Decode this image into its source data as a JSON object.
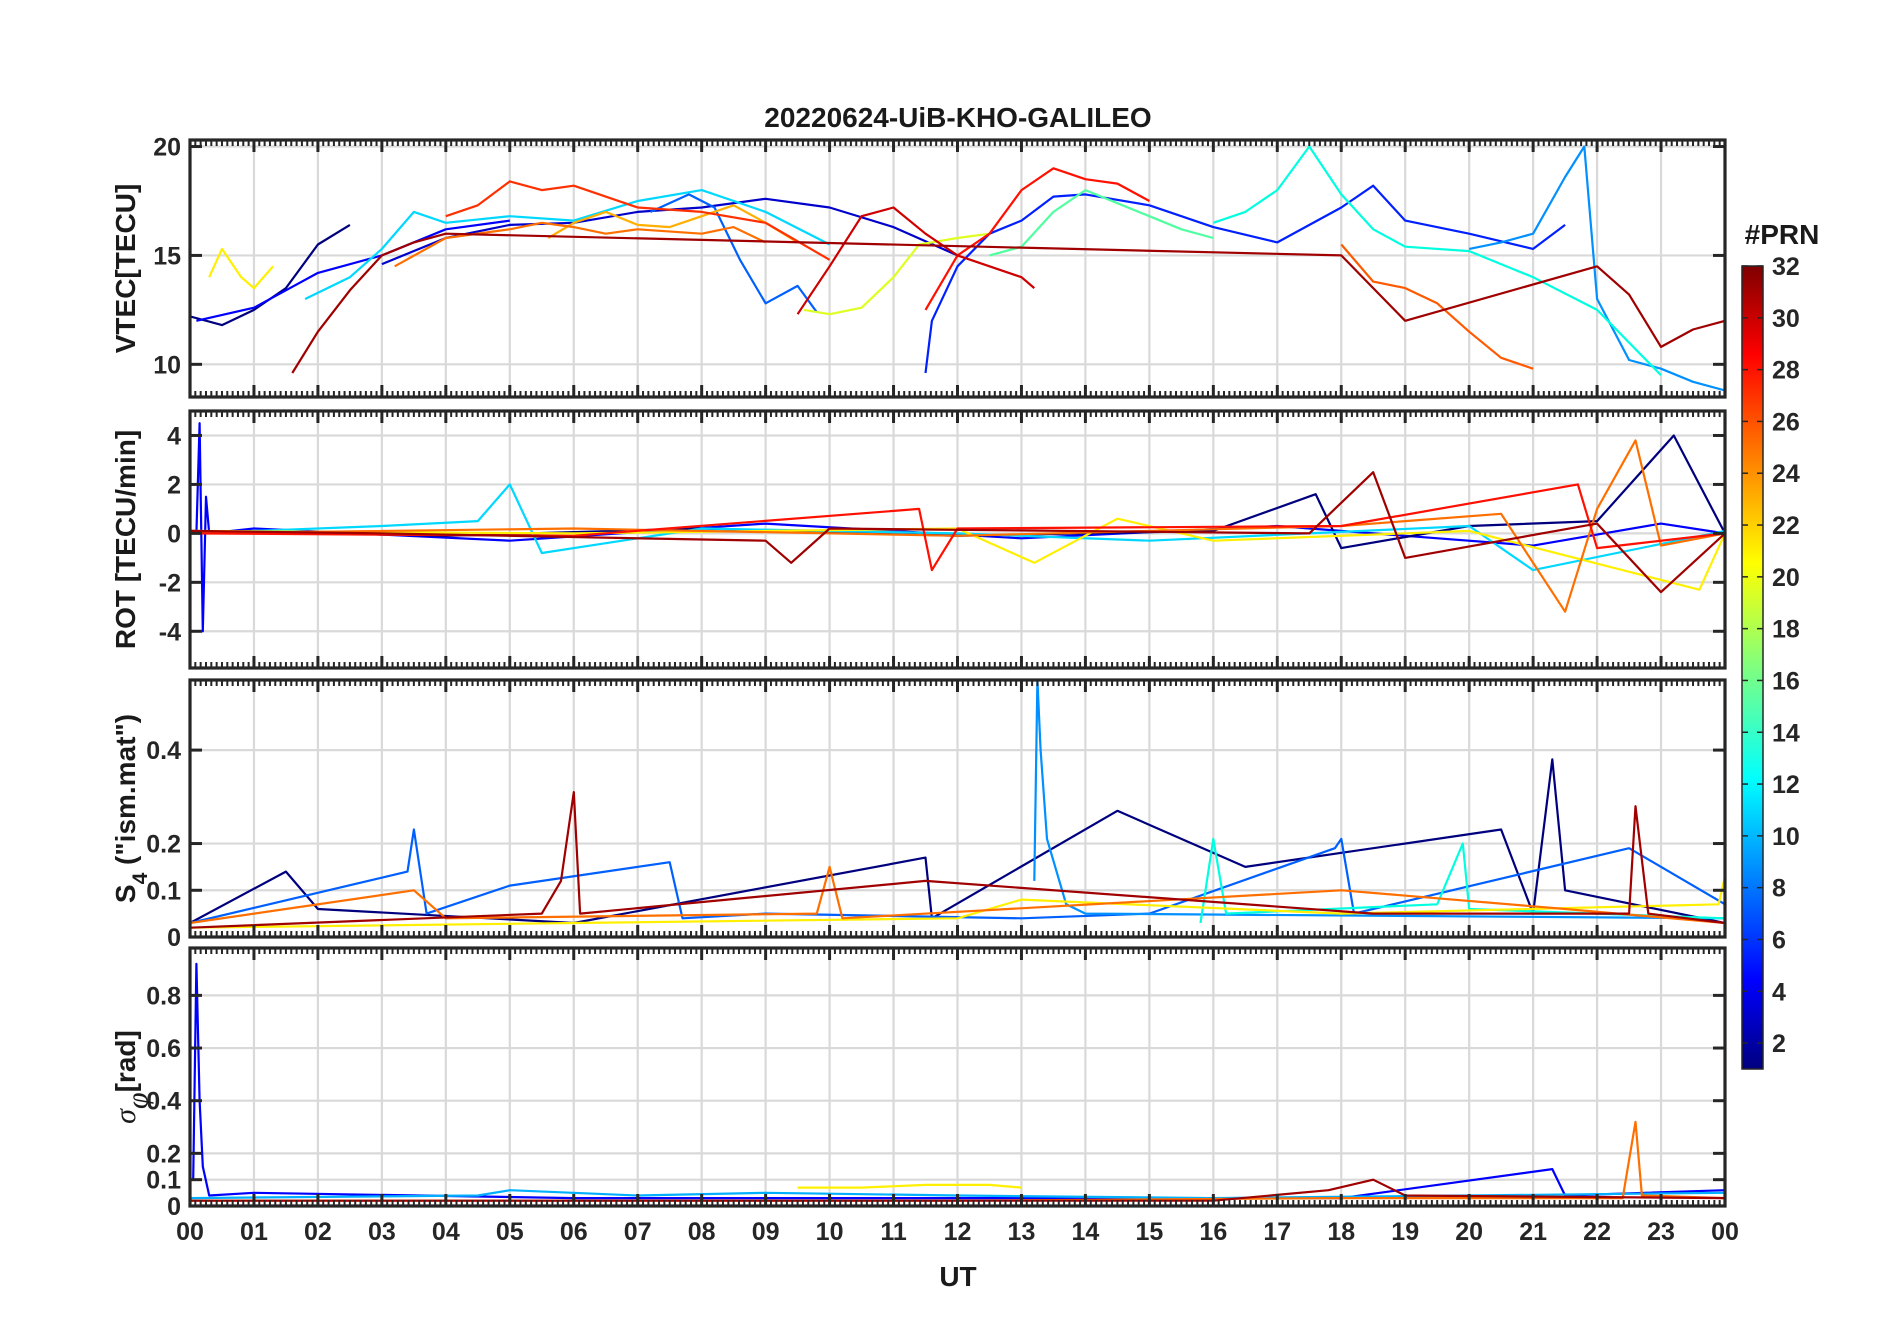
{
  "title": "20220624-UiB-KHO-GALILEO",
  "colorbar": {
    "title": "#PRN",
    "ticks": [
      "2",
      "4",
      "6",
      "8",
      "10",
      "12",
      "14",
      "16",
      "18",
      "20",
      "22",
      "24",
      "26",
      "28",
      "30",
      "32"
    ],
    "range": [
      1,
      32
    ],
    "colormap": "jet"
  },
  "chart_data": [
    {
      "type": "line",
      "panel": "VTEC",
      "title": "20220624-UiB-KHO-GALILEO",
      "xlabel": "",
      "ylabel": "VTEC[TECU]",
      "xlim": [
        0,
        24
      ],
      "ylim": [
        8.5,
        20.3
      ],
      "yticks": [
        "10",
        "15",
        "20"
      ],
      "grid": true,
      "series": [
        {
          "prn": 2,
          "color": "#00007f",
          "x": [
            0.0,
            0.5,
            1.0,
            1.5,
            2.0,
            2.5
          ],
          "y": [
            12.2,
            11.8,
            12.5,
            13.5,
            15.5,
            16.4
          ]
        },
        {
          "prn": 4,
          "color": "#0000ff",
          "x": [
            0.1,
            1.0,
            1.5,
            2.0,
            3.0,
            4.0,
            5.0
          ],
          "y": [
            12.0,
            12.6,
            13.4,
            14.2,
            15.0,
            16.2,
            16.6
          ]
        },
        {
          "prn": 3,
          "color": "#0000cc",
          "x": [
            3.0,
            4.0,
            5.0,
            6.0,
            7.0,
            8.0,
            9.0,
            10.0,
            11.0,
            12.0
          ],
          "y": [
            14.6,
            15.8,
            16.4,
            16.5,
            17.0,
            17.2,
            17.6,
            17.2,
            16.3,
            15.0
          ]
        },
        {
          "prn": 5,
          "color": "#0020ff",
          "x": [
            11.5,
            11.6,
            12.0,
            12.5,
            13.0,
            13.5,
            14.0,
            15.0,
            16.0,
            17.0,
            18.0,
            18.5,
            19.0,
            20.0,
            21.0,
            21.5
          ],
          "y": [
            9.6,
            12.0,
            14.5,
            16.0,
            16.6,
            17.7,
            17.8,
            17.3,
            16.3,
            15.6,
            17.2,
            18.2,
            16.6,
            16.0,
            15.3,
            16.4
          ]
        },
        {
          "prn": 8,
          "color": "#0060ff",
          "x": [
            7.2,
            7.8,
            8.2,
            8.6,
            9.0,
            9.5,
            9.8
          ],
          "y": [
            17.0,
            17.8,
            17.2,
            14.8,
            12.8,
            13.6,
            12.4
          ]
        },
        {
          "prn": 9,
          "color": "#0090ff",
          "x": [
            20.0,
            20.5,
            21.0,
            21.5,
            21.8,
            22.0,
            22.5,
            23.0,
            23.5,
            24.0
          ],
          "y": [
            15.3,
            15.6,
            16.0,
            18.6,
            20.0,
            13.0,
            10.2,
            9.8,
            9.2,
            8.8
          ]
        },
        {
          "prn": 12,
          "color": "#00d8ff",
          "x": [
            1.8,
            2.5,
            3.0,
            3.5,
            4.0,
            5.0,
            6.0,
            7.0,
            8.0,
            9.0,
            10.0
          ],
          "y": [
            13.0,
            14.0,
            15.3,
            17.0,
            16.5,
            16.8,
            16.6,
            17.5,
            18.0,
            17.0,
            15.5
          ]
        },
        {
          "prn": 14,
          "color": "#00ffdf",
          "x": [
            16.0,
            16.5,
            17.0,
            17.5,
            18.0,
            18.5,
            19.0,
            20.0,
            21.0,
            22.0,
            23.0
          ],
          "y": [
            16.5,
            17.0,
            18.0,
            20.0,
            17.8,
            16.2,
            15.4,
            15.2,
            14.0,
            12.5,
            9.5
          ]
        },
        {
          "prn": 16,
          "color": "#50ff9f",
          "x": [
            12.5,
            13.0,
            13.5,
            14.0,
            14.5,
            15.0,
            15.5,
            16.0
          ],
          "y": [
            15.0,
            15.4,
            17.0,
            18.0,
            17.4,
            16.8,
            16.2,
            15.8
          ]
        },
        {
          "prn": 19,
          "color": "#dfff20",
          "x": [
            9.6,
            10.0,
            10.5,
            11.0,
            11.4,
            12.0,
            12.5
          ],
          "y": [
            12.5,
            12.3,
            12.6,
            14.0,
            15.5,
            15.8,
            16.0
          ]
        },
        {
          "prn": 20,
          "color": "#ffef00",
          "x": [
            0.3,
            0.5,
            0.8,
            1.0,
            1.3
          ],
          "y": [
            14.0,
            15.3,
            14.0,
            13.5,
            14.5
          ]
        },
        {
          "prn": 22,
          "color": "#ffaf00",
          "x": [
            5.6,
            6.0,
            6.5,
            7.0,
            7.5,
            8.0,
            8.5,
            9.0,
            9.5
          ],
          "y": [
            15.8,
            16.5,
            17.0,
            16.4,
            16.3,
            16.8,
            17.3,
            16.5,
            15.6
          ]
        },
        {
          "prn": 24,
          "color": "#ff6f00",
          "x": [
            3.2,
            4.0,
            5.0,
            5.5,
            6.0,
            6.5,
            7.0,
            8.0,
            8.5,
            9.0
          ],
          "y": [
            14.5,
            15.8,
            16.2,
            16.5,
            16.3,
            16.0,
            16.2,
            16.0,
            16.3,
            15.6
          ]
        },
        {
          "prn": 25,
          "color": "#ff5a00",
          "x": [
            18.0,
            18.5,
            19.0,
            19.5,
            20.0,
            20.5,
            21.0
          ],
          "y": [
            15.5,
            13.8,
            13.5,
            12.8,
            11.5,
            10.3,
            9.8
          ]
        },
        {
          "prn": 27,
          "color": "#ff3000",
          "x": [
            4.0,
            4.5,
            5.0,
            5.5,
            6.0,
            7.0,
            8.0,
            9.0,
            10.0
          ],
          "y": [
            16.8,
            17.3,
            18.4,
            18.0,
            18.2,
            17.2,
            17.0,
            16.5,
            14.8
          ]
        },
        {
          "prn": 28,
          "color": "#ff1000",
          "x": [
            11.5,
            12.0,
            12.5,
            13.0,
            13.5,
            14.0,
            14.5,
            15.0
          ],
          "y": [
            12.5,
            15.0,
            16.0,
            18.0,
            19.0,
            18.5,
            18.3,
            17.5
          ]
        },
        {
          "prn": 30,
          "color": "#cf0000",
          "x": [
            9.5,
            10.0,
            10.5,
            11.0,
            11.5,
            12.0,
            12.5,
            13.0,
            13.2
          ],
          "y": [
            12.3,
            14.5,
            16.8,
            17.2,
            16.0,
            15.0,
            14.5,
            14.0,
            13.5
          ]
        },
        {
          "prn": 31,
          "color": "#a00000",
          "x": [
            1.6,
            2.0,
            2.5,
            3.0,
            3.5,
            4.0,
            18.0,
            18.5,
            19.0,
            22.0,
            22.5,
            23.0,
            23.5,
            24.0
          ],
          "y": [
            9.6,
            11.5,
            13.4,
            15.0,
            15.6,
            16.0,
            15.0,
            13.5,
            12.0,
            14.5,
            13.2,
            10.8,
            11.6,
            12.0
          ]
        }
      ]
    },
    {
      "type": "line",
      "panel": "ROT",
      "xlabel": "",
      "ylabel": "ROT [TECU/min]",
      "xlim": [
        0,
        24
      ],
      "ylim": [
        -5.5,
        5
      ],
      "yticks": [
        "-4",
        "-2",
        "0",
        "2",
        "4"
      ],
      "grid": true,
      "series": [
        {
          "prn": 4,
          "color": "#0000ff",
          "x": [
            0.1,
            0.15,
            0.2,
            0.25,
            0.3,
            1.0,
            5.0,
            9.0,
            13.0,
            17.0,
            21.0,
            23.0,
            24.0
          ],
          "y": [
            0.0,
            4.5,
            -4.0,
            1.5,
            0.0,
            0.2,
            -0.3,
            0.4,
            -0.2,
            0.3,
            -0.5,
            0.4,
            0.0
          ]
        },
        {
          "prn": 2,
          "color": "#00007f",
          "x": [
            0,
            4,
            8,
            12,
            16,
            17.6,
            18,
            20,
            22,
            23.2,
            24
          ],
          "y": [
            0.1,
            -0.1,
            0.2,
            -0.1,
            0.1,
            1.6,
            -0.6,
            0.3,
            0.5,
            4.0,
            0.0
          ]
        },
        {
          "prn": 12,
          "color": "#00d8ff",
          "x": [
            0,
            3,
            4.5,
            5.0,
            5.5,
            8,
            12,
            15,
            20,
            21,
            24
          ],
          "y": [
            0.0,
            0.3,
            0.5,
            2.0,
            -0.8,
            0.2,
            0.0,
            -0.3,
            0.3,
            -1.5,
            0.1
          ]
        },
        {
          "prn": 20,
          "color": "#ffef00",
          "x": [
            0,
            6,
            12,
            13.2,
            14.5,
            16,
            20,
            23.6,
            24
          ],
          "y": [
            0.1,
            0.0,
            0.2,
            -1.2,
            0.6,
            -0.3,
            0.1,
            -2.3,
            0.0
          ]
        },
        {
          "prn": 24,
          "color": "#ff6f00",
          "x": [
            0,
            6,
            12,
            18,
            20.5,
            21.5,
            22,
            22.6,
            23,
            24
          ],
          "y": [
            0.0,
            0.2,
            -0.1,
            0.3,
            0.8,
            -3.2,
            1.0,
            3.8,
            -0.5,
            0.0
          ]
        },
        {
          "prn": 28,
          "color": "#ff1000",
          "x": [
            0,
            6,
            11.4,
            11.6,
            12,
            18,
            21.7,
            22,
            24
          ],
          "y": [
            0.0,
            -0.1,
            1.0,
            -1.5,
            0.2,
            0.3,
            2.0,
            -0.6,
            0.0
          ]
        },
        {
          "prn": 31,
          "color": "#a00000",
          "x": [
            0,
            3,
            9,
            9.4,
            10,
            17.5,
            18.5,
            19,
            22,
            23,
            24
          ],
          "y": [
            0.1,
            0.0,
            -0.3,
            -1.2,
            0.2,
            0.0,
            2.5,
            -1.0,
            0.4,
            -2.4,
            0.0
          ]
        }
      ]
    },
    {
      "type": "line",
      "panel": "S4",
      "xlabel": "",
      "ylabel": "S4 (\"ism.mat\")",
      "xlim": [
        0,
        24
      ],
      "ylim": [
        0,
        0.55
      ],
      "yticks": [
        "0",
        "0.1",
        "0.2",
        "0.4"
      ],
      "grid": true,
      "series": [
        {
          "prn": 2,
          "color": "#00007f",
          "x": [
            0,
            1.5,
            2.0,
            6.0,
            11.5,
            11.6,
            14.5,
            16.5,
            20.5,
            21.0,
            21.3,
            21.5,
            24
          ],
          "y": [
            0.03,
            0.14,
            0.06,
            0.03,
            0.17,
            0.04,
            0.27,
            0.15,
            0.23,
            0.05,
            0.38,
            0.1,
            0.03
          ]
        },
        {
          "prn": 8,
          "color": "#0060ff",
          "x": [
            0,
            3.4,
            3.5,
            3.7,
            5.0,
            7.5,
            7.7,
            9,
            13,
            15,
            17.9,
            18.0,
            18.2,
            22.5,
            24
          ],
          "y": [
            0.03,
            0.14,
            0.23,
            0.05,
            0.11,
            0.16,
            0.04,
            0.05,
            0.04,
            0.05,
            0.19,
            0.21,
            0.05,
            0.19,
            0.07
          ]
        },
        {
          "prn": 9,
          "color": "#0090ff",
          "x": [
            13.2,
            13.25,
            13.3,
            13.4,
            13.7,
            14.0,
            24
          ],
          "y": [
            0.12,
            0.55,
            0.4,
            0.21,
            0.07,
            0.05,
            0.04
          ]
        },
        {
          "prn": 14,
          "color": "#00ffdf",
          "x": [
            15.8,
            16.0,
            16.2,
            19.5,
            19.9,
            20.0,
            24
          ],
          "y": [
            0.03,
            0.21,
            0.05,
            0.07,
            0.2,
            0.06,
            0.04
          ]
        },
        {
          "prn": 20,
          "color": "#ffef00",
          "x": [
            0,
            6,
            12,
            13.0,
            18,
            23.9,
            24
          ],
          "y": [
            0.02,
            0.03,
            0.04,
            0.08,
            0.05,
            0.07,
            0.13
          ]
        },
        {
          "prn": 24,
          "color": "#ff6f00",
          "x": [
            0,
            3.5,
            4.0,
            9.8,
            10.0,
            10.2,
            18.0,
            21.5,
            24
          ],
          "y": [
            0.03,
            0.1,
            0.04,
            0.05,
            0.15,
            0.04,
            0.1,
            0.06,
            0.03
          ]
        },
        {
          "prn": 31,
          "color": "#a00000",
          "x": [
            0,
            5.5,
            5.8,
            6.0,
            6.1,
            11.5,
            18.5,
            22.5,
            22.6,
            22.8,
            24
          ],
          "y": [
            0.02,
            0.05,
            0.12,
            0.31,
            0.05,
            0.12,
            0.05,
            0.05,
            0.28,
            0.05,
            0.03
          ]
        }
      ]
    },
    {
      "type": "line",
      "panel": "sigma-phi",
      "xlabel": "UT",
      "ylabel": "σφ[rad]",
      "xlim": [
        0,
        24
      ],
      "xticks": [
        "00",
        "01",
        "02",
        "03",
        "04",
        "05",
        "06",
        "07",
        "08",
        "09",
        "10",
        "11",
        "12",
        "13",
        "14",
        "15",
        "16",
        "17",
        "18",
        "19",
        "20",
        "21",
        "22",
        "23",
        "00"
      ],
      "ylim": [
        0,
        0.98
      ],
      "yticks": [
        "0",
        "0.1",
        "0.2",
        "0.4",
        "0.6",
        "0.8"
      ],
      "grid": true,
      "series": [
        {
          "prn": 4,
          "color": "#0000ff",
          "x": [
            0.05,
            0.1,
            0.15,
            0.2,
            0.3,
            1.0,
            6.0,
            12.0,
            18.0,
            21.3,
            21.5,
            24
          ],
          "y": [
            0.1,
            0.92,
            0.4,
            0.15,
            0.04,
            0.05,
            0.03,
            0.03,
            0.03,
            0.14,
            0.04,
            0.06
          ]
        },
        {
          "prn": 10,
          "color": "#00b0ff",
          "x": [
            0,
            4.5,
            5.0,
            7.0,
            9.0,
            12.0,
            16.0,
            20.0,
            24
          ],
          "y": [
            0.03,
            0.04,
            0.06,
            0.04,
            0.05,
            0.04,
            0.03,
            0.04,
            0.05
          ]
        },
        {
          "prn": 20,
          "color": "#ffef00",
          "x": [
            9.5,
            10.5,
            11.5,
            12.5,
            13.0
          ],
          "y": [
            0.07,
            0.07,
            0.08,
            0.08,
            0.07
          ]
        },
        {
          "prn": 24,
          "color": "#ff6f00",
          "x": [
            0,
            12,
            18,
            22.4,
            22.6,
            22.7,
            24
          ],
          "y": [
            0.02,
            0.02,
            0.03,
            0.03,
            0.32,
            0.04,
            0.03
          ]
        },
        {
          "prn": 31,
          "color": "#a00000",
          "x": [
            0,
            8,
            16,
            17.8,
            18.5,
            19,
            24
          ],
          "y": [
            0.02,
            0.02,
            0.02,
            0.06,
            0.1,
            0.04,
            0.03
          ]
        }
      ]
    }
  ]
}
